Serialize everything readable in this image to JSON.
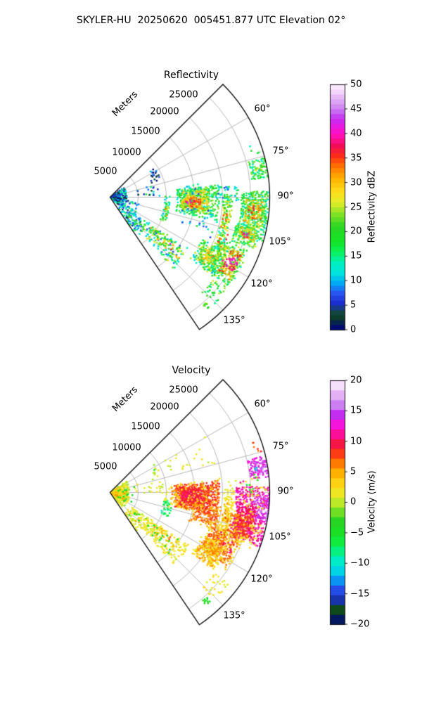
{
  "title": "SKYLER-HU  20250620  005451.877 UTC Elevation 02°",
  "colors": {
    "background": "#ffffff",
    "grid": "#b0b0b0",
    "boundary": "#000000",
    "text": "#000000"
  },
  "colormap": {
    "name": "rainbow-gist-ncar-like",
    "stops": [
      [
        0.0,
        "#000080"
      ],
      [
        0.06,
        "#0e4a1a"
      ],
      [
        0.11,
        "#1b2fd0"
      ],
      [
        0.15,
        "#2a55f0"
      ],
      [
        0.19,
        "#00a8f5"
      ],
      [
        0.23,
        "#00e2df"
      ],
      [
        0.27,
        "#00efc2"
      ],
      [
        0.32,
        "#0cf157"
      ],
      [
        0.36,
        "#13e425"
      ],
      [
        0.42,
        "#28d524"
      ],
      [
        0.47,
        "#7fe125"
      ],
      [
        0.52,
        "#e5ee2a"
      ],
      [
        0.57,
        "#ffd919"
      ],
      [
        0.62,
        "#ffb000"
      ],
      [
        0.67,
        "#ff6d00"
      ],
      [
        0.71,
        "#fb2c1b"
      ],
      [
        0.75,
        "#f10e56"
      ],
      [
        0.79,
        "#ff0fae"
      ],
      [
        0.82,
        "#f414dc"
      ],
      [
        0.86,
        "#c32df0"
      ],
      [
        0.9,
        "#cb7ef2"
      ],
      [
        0.94,
        "#e3aff5"
      ],
      [
        0.97,
        "#f3d4fa"
      ],
      [
        1.0,
        "#fdf4fd"
      ]
    ]
  },
  "chart_data": [
    {
      "type": "heatmap",
      "subtype": "radar-ppi-sector",
      "title": "Reflectivity",
      "radial_axis": {
        "label": "Meters",
        "ticks": [
          5000,
          10000,
          15000,
          20000,
          25000
        ],
        "tick_labels": [
          "5000",
          "10000",
          "15000",
          "20000",
          "25000"
        ],
        "max_range_m": 28400
      },
      "angle_axis": {
        "ticks": [
          60,
          75,
          90,
          105,
          120,
          135
        ],
        "tick_labels": [
          "60°",
          "75°",
          "90°",
          "105°",
          "120°",
          "135°"
        ],
        "sector_start_deg": 45,
        "sector_end_deg": 146
      },
      "colorbar": {
        "label": "Reflectivity dBZ",
        "min": 0,
        "max": 50,
        "steps": 50,
        "ticks": [
          0,
          5,
          10,
          15,
          20,
          25,
          30,
          35,
          40,
          45,
          50
        ],
        "tick_labels": [
          "0",
          "5",
          "10",
          "15",
          "20",
          "25",
          "30",
          "35",
          "40",
          "45",
          "50"
        ]
      },
      "echo_format": "az_start_deg, az_end_deg, range_start_m, range_end_m, value_dBZ, fill_density, value_jitter",
      "echoes": [
        [
          55,
          130,
          200,
          3000,
          8,
          0.45,
          10
        ],
        [
          58,
          96,
          300,
          1800,
          5,
          0.5,
          6
        ],
        [
          100,
          145,
          2500,
          5200,
          10,
          0.25,
          8
        ],
        [
          58,
          72,
          7800,
          9600,
          5,
          0.3,
          5
        ],
        [
          74,
          90,
          4500,
          9500,
          10,
          0.12,
          8
        ],
        [
          125,
          145,
          4500,
          8500,
          12,
          0.4,
          9
        ],
        [
          128,
          140,
          5000,
          7500,
          18,
          0.25,
          8
        ],
        [
          124,
          138,
          8000,
          17000,
          17,
          0.3,
          10
        ],
        [
          126,
          133,
          9000,
          16500,
          24,
          0.25,
          8
        ],
        [
          127,
          131,
          12500,
          14500,
          33,
          0.12,
          5
        ],
        [
          128,
          130,
          13200,
          13800,
          40,
          0.05,
          3
        ],
        [
          90,
          113,
          9800,
          10800,
          17,
          0.45,
          7
        ],
        [
          100,
          110,
          10000,
          10600,
          26,
          0.15,
          6
        ],
        [
          101,
          104,
          10100,
          10500,
          35,
          0.06,
          3
        ],
        [
          84,
          103,
          12000,
          19300,
          18,
          0.55,
          6
        ],
        [
          86,
          100,
          12800,
          17800,
          26,
          0.5,
          5
        ],
        [
          90,
          98,
          13300,
          16800,
          31,
          0.45,
          4
        ],
        [
          92,
          96.5,
          13600,
          16300,
          36,
          0.4,
          3
        ],
        [
          92.5,
          95.5,
          13900,
          15900,
          41,
          0.2,
          3
        ],
        [
          82,
          88,
          12500,
          16500,
          11,
          0.3,
          6
        ],
        [
          84,
          92,
          18500,
          21000,
          12,
          0.2,
          6
        ],
        [
          89,
          122,
          20300,
          21900,
          20,
          0.45,
          8
        ],
        [
          90,
          96,
          20200,
          21200,
          25,
          0.25,
          5
        ],
        [
          90.5,
          92.5,
          20600,
          21400,
          35,
          0.3,
          3
        ],
        [
          98,
          105,
          20400,
          21700,
          31,
          0.3,
          5
        ],
        [
          108,
          116,
          20800,
          22000,
          33,
          0.3,
          5
        ],
        [
          110,
          113,
          21000,
          21600,
          40,
          0.08,
          3
        ],
        [
          88,
          106,
          23500,
          28300,
          18,
          0.5,
          7
        ],
        [
          91,
          101,
          24200,
          27600,
          26,
          0.4,
          6
        ],
        [
          93,
          99,
          24800,
          27000,
          33,
          0.3,
          4
        ],
        [
          94,
          97,
          25300,
          26500,
          37,
          0.15,
          3
        ],
        [
          102,
          110,
          23000,
          27500,
          20,
          0.45,
          7
        ],
        [
          103,
          108,
          23800,
          26500,
          28,
          0.35,
          5
        ],
        [
          104,
          107,
          24300,
          25800,
          35,
          0.2,
          4
        ],
        [
          105,
          106.5,
          24600,
          25400,
          40,
          0.08,
          3
        ],
        [
          111,
          127,
          21500,
          26500,
          19,
          0.4,
          8
        ],
        [
          113,
          125,
          22500,
          26000,
          27,
          0.35,
          6
        ],
        [
          114,
          117,
          23500,
          25500,
          36,
          0.3,
          4
        ],
        [
          118,
          121,
          23000,
          25500,
          38,
          0.3,
          4
        ],
        [
          121,
          124,
          23500,
          26000,
          34,
          0.25,
          4
        ],
        [
          115,
          122,
          23800,
          25500,
          41,
          0.1,
          2
        ],
        [
          115,
          128,
          18000,
          23000,
          18,
          0.4,
          8
        ],
        [
          117,
          126,
          19000,
          22000,
          25,
          0.3,
          6
        ],
        [
          119,
          123,
          19500,
          21500,
          31,
          0.15,
          4
        ],
        [
          128,
          136,
          23500,
          26500,
          20,
          0.2,
          6
        ],
        [
          137.5,
          139.5,
          25400,
          26400,
          23,
          0.5,
          4
        ],
        [
          76,
          83,
          25500,
          28300,
          18,
          0.5,
          6
        ],
        [
          77.5,
          81.5,
          26200,
          27800,
          24,
          0.3,
          5
        ],
        [
          70,
          77,
          26500,
          28300,
          16,
          0.12,
          5
        ],
        [
          94,
          112,
          13000,
          19500,
          12,
          0.06,
          6
        ],
        [
          85,
          95,
          19500,
          22500,
          14,
          0.1,
          6
        ],
        [
          86,
          92,
          22000,
          23500,
          16,
          0.15,
          6
        ]
      ]
    },
    {
      "type": "heatmap",
      "subtype": "radar-ppi-sector",
      "title": "Velocity",
      "radial_axis": {
        "label": "Meters",
        "ticks": [
          5000,
          10000,
          15000,
          20000,
          25000
        ],
        "tick_labels": [
          "5000",
          "10000",
          "15000",
          "20000",
          "25000"
        ],
        "max_range_m": 28400
      },
      "angle_axis": {
        "ticks": [
          60,
          75,
          90,
          105,
          120,
          135
        ],
        "tick_labels": [
          "60°",
          "75°",
          "90°",
          "105°",
          "120°",
          "135°"
        ],
        "sector_start_deg": 45,
        "sector_end_deg": 146
      },
      "colorbar": {
        "label": "Velocity (m/s)",
        "min": -20,
        "max": 20,
        "steps": 25,
        "ticks": [
          -20,
          -15,
          -10,
          -5,
          0,
          5,
          10,
          15,
          20
        ],
        "tick_labels": [
          "−20",
          "−15",
          "−10",
          "−5",
          "0",
          "5",
          "10",
          "15",
          "20"
        ]
      },
      "echo_format": "az_start_deg, az_end_deg, range_start_m, range_end_m, value_mps, fill_density, value_jitter",
      "echoes": [
        [
          55,
          140,
          200,
          3500,
          1,
          0.5,
          2
        ],
        [
          60,
          130,
          300,
          2500,
          3,
          0.2,
          2
        ],
        [
          80,
          120,
          500,
          3000,
          5,
          0.08,
          1
        ],
        [
          70,
          125,
          1500,
          4500,
          -4,
          0.05,
          2
        ],
        [
          58,
          72,
          7800,
          9600,
          0.5,
          0.25,
          1.5
        ],
        [
          63,
          66,
          8600,
          9200,
          -6,
          0.15,
          2
        ],
        [
          74,
          90,
          4500,
          9500,
          1,
          0.1,
          1.5
        ],
        [
          125,
          145,
          4500,
          8500,
          1,
          0.4,
          1.5
        ],
        [
          128,
          140,
          5000,
          7500,
          4,
          0.1,
          1
        ],
        [
          127,
          142,
          5000,
          8000,
          -4,
          0.08,
          1.5
        ],
        [
          99,
          113,
          9800,
          11200,
          -7,
          0.4,
          2
        ],
        [
          90,
          100,
          9800,
          10600,
          1,
          0.2,
          1.5
        ],
        [
          124,
          138,
          8000,
          17000,
          1.5,
          0.35,
          1.5
        ],
        [
          126,
          133,
          10000,
          15000,
          4.5,
          0.15,
          1
        ],
        [
          127,
          131,
          12800,
          14200,
          7.5,
          0.06,
          1
        ],
        [
          125,
          136,
          8500,
          16000,
          -4.5,
          0.06,
          1.5
        ],
        [
          128,
          130,
          13000,
          13800,
          10,
          0.04,
          1
        ],
        [
          84,
          103,
          11800,
          19500,
          7.5,
          0.55,
          1.5
        ],
        [
          86,
          100,
          12500,
          18000,
          8.5,
          0.5,
          1
        ],
        [
          88,
          98,
          13500,
          16500,
          10,
          0.25,
          0.8
        ],
        [
          88,
          97,
          13000,
          16500,
          9.5,
          0.4,
          1
        ],
        [
          86,
          94,
          12000,
          14000,
          11,
          0.12,
          1
        ],
        [
          84,
          102,
          11000,
          12500,
          6,
          0.3,
          1.5
        ],
        [
          83,
          104,
          10500,
          20000,
          2.5,
          0.12,
          2
        ],
        [
          100,
          108,
          15500,
          19600,
          7.5,
          0.4,
          1.5
        ],
        [
          98,
          110,
          15000,
          20000,
          5,
          0.2,
          1.5
        ],
        [
          89,
          122,
          20300,
          22000,
          2,
          0.4,
          1.5
        ],
        [
          95,
          104,
          20400,
          21700,
          5,
          0.25,
          1
        ],
        [
          99,
          103,
          20500,
          21500,
          8,
          0.1,
          1
        ],
        [
          110,
          115,
          20800,
          22000,
          7.5,
          0.15,
          1
        ],
        [
          77,
          84.5,
          25200,
          28300,
          13,
          0.5,
          1.5
        ],
        [
          78,
          83,
          26200,
          28100,
          15.5,
          0.3,
          1.5
        ],
        [
          80.5,
          82,
          25800,
          26600,
          -12,
          0.35,
          1
        ],
        [
          71,
          75,
          26500,
          28200,
          7,
          0.15,
          2
        ],
        [
          88,
          110,
          22500,
          28300,
          11.5,
          0.5,
          1.5
        ],
        [
          91,
          100,
          25500,
          28300,
          15,
          0.4,
          1.5
        ],
        [
          96,
          108,
          23000,
          26500,
          10,
          0.4,
          1
        ],
        [
          100,
          108.5,
          23000,
          26200,
          8,
          0.45,
          1
        ],
        [
          100,
          110,
          21500,
          23500,
          6,
          0.3,
          1.5
        ],
        [
          84,
          112,
          21000,
          28000,
          2,
          0.1,
          2
        ],
        [
          87,
          91,
          23500,
          25500,
          -5,
          0.08,
          2
        ],
        [
          85.5,
          87,
          23200,
          23800,
          11,
          0.3,
          1
        ],
        [
          108,
          122,
          19000,
          24500,
          7,
          0.45,
          1.5
        ],
        [
          110,
          118,
          21000,
          24000,
          10.5,
          0.1,
          1
        ],
        [
          106,
          124,
          18500,
          25000,
          2.5,
          0.15,
          2
        ],
        [
          116,
          126,
          18500,
          22500,
          5.5,
          0.5,
          1
        ],
        [
          115,
          127,
          18000,
          23000,
          2,
          0.2,
          1.5
        ],
        [
          128,
          136,
          23500,
          26500,
          1.5,
          0.2,
          1.5
        ],
        [
          137.5,
          139.5,
          25400,
          26400,
          -4,
          0.5,
          1.5
        ],
        [
          83,
          85.5,
          25800,
          26600,
          -5,
          0.2,
          1
        ],
        [
          60,
          75,
          10000,
          20000,
          1,
          0.03,
          1.5
        ]
      ]
    }
  ]
}
